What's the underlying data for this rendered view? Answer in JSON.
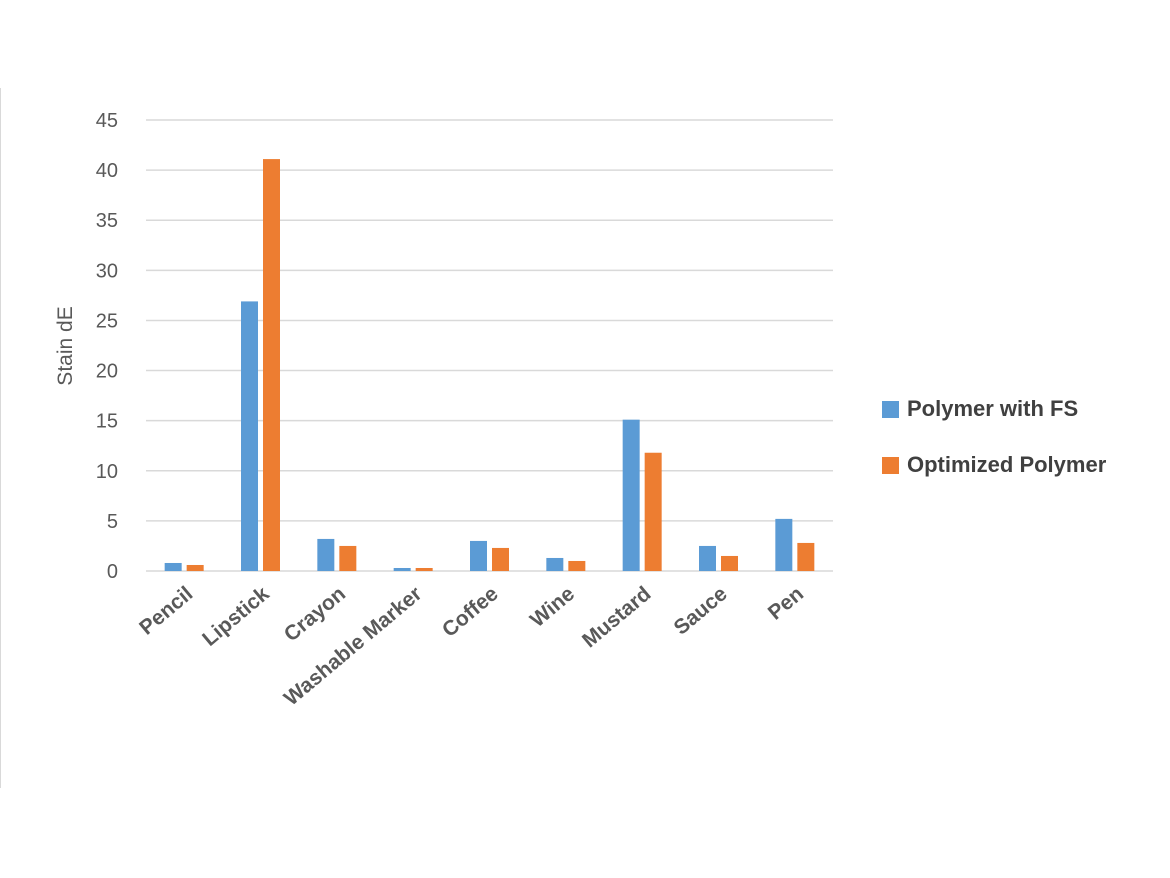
{
  "chart_data": {
    "type": "bar",
    "title": "",
    "xlabel": "",
    "ylabel": "Stain dE",
    "ylim": [
      0,
      45
    ],
    "yticks": [
      0,
      5,
      10,
      15,
      20,
      25,
      30,
      35,
      40,
      45
    ],
    "grid": true,
    "legend_position": "right",
    "categories": [
      "Pencil",
      "Lipstick",
      "Crayon",
      "Washable Marker",
      "Coffee",
      "Wine",
      "Mustard",
      "Sauce",
      "Pen"
    ],
    "series": [
      {
        "name": "Polymer with FS",
        "color": "#5b9bd5",
        "values": [
          0.8,
          26.9,
          3.2,
          0.3,
          3.0,
          1.3,
          15.1,
          2.5,
          5.2
        ]
      },
      {
        "name": "Optimized Polymer",
        "color": "#ed7d31",
        "values": [
          0.6,
          41.1,
          2.5,
          0.3,
          2.3,
          1.0,
          11.8,
          1.5,
          2.8
        ]
      }
    ]
  }
}
